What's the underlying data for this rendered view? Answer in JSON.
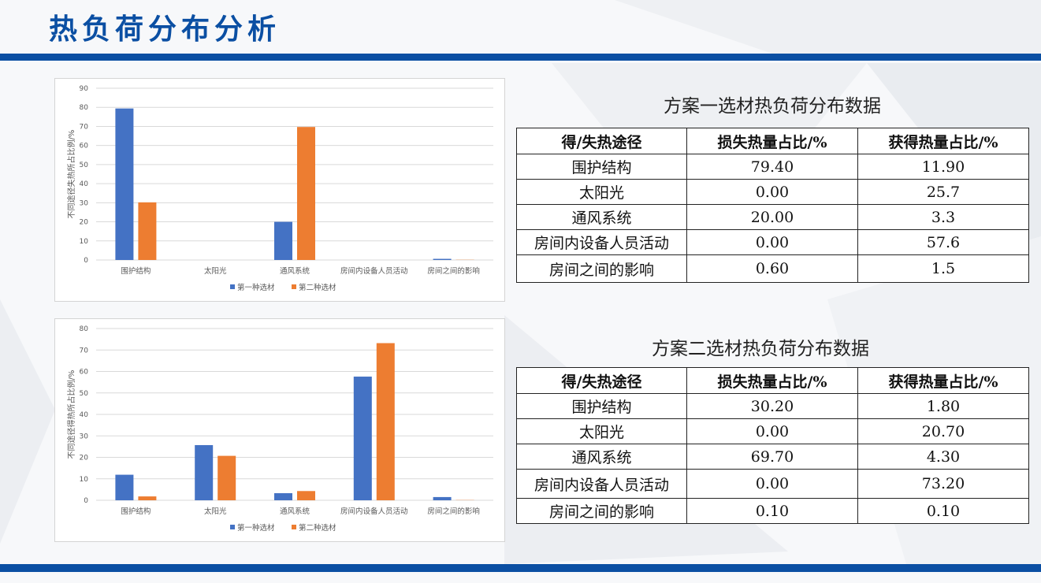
{
  "page": {
    "title": "热负荷分布分析"
  },
  "colors": {
    "brand": "#0b4fa3",
    "series1": "#4472c4",
    "series2": "#ed7d31"
  },
  "chart_data": [
    {
      "type": "bar",
      "title": "",
      "xlabel": "",
      "ylabel": "不同途径失热所占比例/%",
      "categories": [
        "围护结构",
        "太阳光",
        "通风系统",
        "房间内设备人员活动",
        "房间之间的影响"
      ],
      "series": [
        {
          "name": "第一种选材",
          "values": [
            79.4,
            0,
            20.0,
            0,
            0.6
          ]
        },
        {
          "name": "第二种选材",
          "values": [
            30.2,
            0,
            69.7,
            0,
            0.1
          ]
        }
      ],
      "ylim": [
        0,
        90
      ],
      "yticks": [
        0,
        10,
        20,
        30,
        40,
        50,
        60,
        70,
        80,
        90
      ],
      "grid": true,
      "legend": "bottom"
    },
    {
      "type": "bar",
      "title": "",
      "xlabel": "",
      "ylabel": "不同途径得热所占比例/%",
      "categories": [
        "围护结构",
        "太阳光",
        "通风系统",
        "房间内设备人员活动",
        "房间之间的影响"
      ],
      "series": [
        {
          "name": "第一种选材",
          "values": [
            11.9,
            25.7,
            3.3,
            57.6,
            1.5
          ]
        },
        {
          "name": "第二种选材",
          "values": [
            1.8,
            20.7,
            4.3,
            73.2,
            0.1
          ]
        }
      ],
      "ylim": [
        0,
        80
      ],
      "yticks": [
        0,
        10,
        20,
        30,
        40,
        50,
        60,
        70,
        80
      ],
      "grid": true,
      "legend": "bottom"
    }
  ],
  "table1": {
    "caption": "方案一选材热负荷分布数据",
    "headers": [
      "得/失热途径",
      "损失热量占比/%",
      "获得热量占比/%"
    ],
    "rows": [
      [
        "围护结构",
        "79.40",
        "11.90"
      ],
      [
        "太阳光",
        "0.00",
        "25.7"
      ],
      [
        "通风系统",
        "20.00",
        "3.3"
      ],
      [
        "房间内设备人员活动",
        "0.00",
        "57.6"
      ],
      [
        "房间之间的影响",
        "0.60",
        "1.5"
      ]
    ]
  },
  "table2": {
    "caption": "方案二选材热负荷分布数据",
    "headers": [
      "得/失热途径",
      "损失热量占比/%",
      "获得热量占比/%"
    ],
    "rows": [
      [
        "围护结构",
        "30.20",
        "1.80"
      ],
      [
        "太阳光",
        "0.00",
        "20.70"
      ],
      [
        "通风系统",
        "69.70",
        "4.30"
      ],
      [
        "房间内设备人员活动",
        "0.00",
        "73.20"
      ],
      [
        "房间之间的影响",
        "0.10",
        "0.10"
      ]
    ]
  }
}
